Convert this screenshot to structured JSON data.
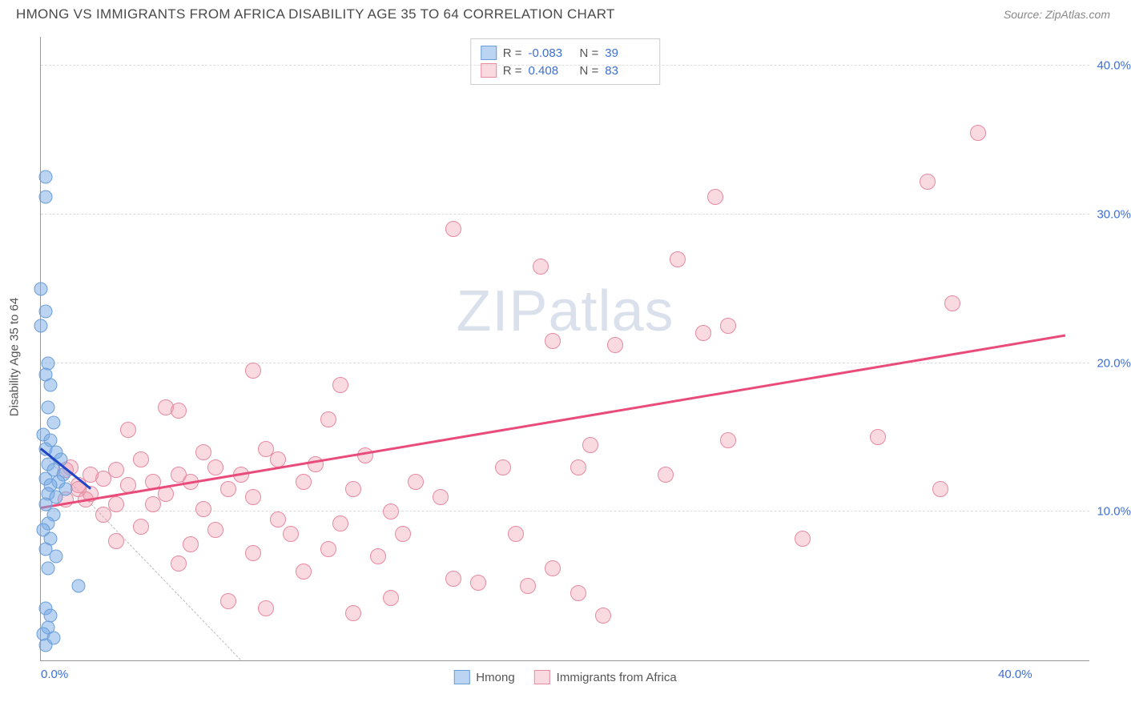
{
  "title": "HMONG VS IMMIGRANTS FROM AFRICA DISABILITY AGE 35 TO 64 CORRELATION CHART",
  "source": "Source: ZipAtlas.com",
  "ylabel": "Disability Age 35 to 64",
  "watermark_zip": "ZIP",
  "watermark_atlas": "atlas",
  "chart": {
    "type": "scatter",
    "xlim": [
      0,
      42
    ],
    "ylim": [
      0,
      42
    ],
    "yticks": [
      10,
      20,
      30,
      40
    ],
    "ytick_labels": [
      "10.0%",
      "20.0%",
      "30.0%",
      "40.0%"
    ],
    "xticks": [
      0,
      40
    ],
    "xtick_labels": [
      "0.0%",
      "40.0%"
    ],
    "grid_color": "#dddddd",
    "background_color": "#ffffff",
    "series": {
      "hmong": {
        "label": "Hmong",
        "color_fill": "rgba(120,170,230,0.5)",
        "color_stroke": "#6a9ed8",
        "marker_size": 17,
        "R": "-0.083",
        "N": "39",
        "trend": {
          "x1": 0.0,
          "y1": 14.2,
          "x2": 2.0,
          "y2": 11.5,
          "color": "#2145c7",
          "width": 2.5
        },
        "points": [
          [
            0.2,
            32.5
          ],
          [
            0.2,
            31.2
          ],
          [
            0.0,
            25.0
          ],
          [
            0.2,
            23.5
          ],
          [
            0.0,
            22.5
          ],
          [
            0.3,
            20.0
          ],
          [
            0.2,
            19.2
          ],
          [
            0.4,
            18.5
          ],
          [
            0.3,
            17.0
          ],
          [
            0.5,
            16.0
          ],
          [
            0.1,
            15.2
          ],
          [
            0.4,
            14.8
          ],
          [
            0.2,
            14.2
          ],
          [
            0.6,
            14.0
          ],
          [
            0.8,
            13.5
          ],
          [
            0.3,
            13.2
          ],
          [
            0.5,
            12.8
          ],
          [
            0.9,
            12.5
          ],
          [
            0.2,
            12.2
          ],
          [
            0.7,
            12.0
          ],
          [
            0.4,
            11.8
          ],
          [
            1.0,
            11.5
          ],
          [
            0.3,
            11.2
          ],
          [
            0.6,
            11.0
          ],
          [
            0.2,
            10.5
          ],
          [
            0.5,
            9.8
          ],
          [
            0.3,
            9.2
          ],
          [
            0.1,
            8.8
          ],
          [
            0.4,
            8.2
          ],
          [
            0.2,
            7.5
          ],
          [
            0.6,
            7.0
          ],
          [
            0.3,
            6.2
          ],
          [
            1.5,
            5.0
          ],
          [
            0.2,
            3.5
          ],
          [
            0.4,
            3.0
          ],
          [
            0.3,
            2.2
          ],
          [
            0.1,
            1.8
          ],
          [
            0.5,
            1.5
          ],
          [
            0.2,
            1.0
          ]
        ]
      },
      "africa": {
        "label": "Immigrants from Africa",
        "color_fill": "rgba(240,150,170,0.35)",
        "color_stroke": "#e68aa0",
        "marker_size": 20,
        "R": "0.408",
        "N": "83",
        "trend": {
          "x1": 0.0,
          "y1": 10.2,
          "x2": 41.0,
          "y2": 21.8,
          "color": "#e94b7a",
          "width": 2.5
        },
        "points": [
          [
            37.5,
            35.5
          ],
          [
            35.5,
            32.2
          ],
          [
            27.0,
            31.2
          ],
          [
            16.5,
            29.0
          ],
          [
            25.5,
            27.0
          ],
          [
            20.0,
            26.5
          ],
          [
            36.5,
            24.0
          ],
          [
            27.5,
            22.5
          ],
          [
            26.5,
            22.0
          ],
          [
            20.5,
            21.5
          ],
          [
            23.0,
            21.2
          ],
          [
            8.5,
            19.5
          ],
          [
            12.0,
            18.5
          ],
          [
            5.0,
            17.0
          ],
          [
            5.5,
            16.8
          ],
          [
            11.5,
            16.2
          ],
          [
            3.5,
            15.5
          ],
          [
            33.5,
            15.0
          ],
          [
            27.5,
            14.8
          ],
          [
            22.0,
            14.5
          ],
          [
            9.0,
            14.2
          ],
          [
            6.5,
            14.0
          ],
          [
            13.0,
            13.8
          ],
          [
            9.5,
            13.5
          ],
          [
            4.0,
            13.5
          ],
          [
            11.0,
            13.2
          ],
          [
            7.0,
            13.0
          ],
          [
            18.5,
            13.0
          ],
          [
            21.5,
            13.0
          ],
          [
            3.0,
            12.8
          ],
          [
            5.5,
            12.5
          ],
          [
            8.0,
            12.5
          ],
          [
            25.0,
            12.5
          ],
          [
            2.5,
            12.2
          ],
          [
            4.5,
            12.0
          ],
          [
            6.0,
            12.0
          ],
          [
            10.5,
            12.0
          ],
          [
            15.0,
            12.0
          ],
          [
            1.5,
            11.8
          ],
          [
            3.5,
            11.8
          ],
          [
            7.5,
            11.5
          ],
          [
            12.5,
            11.5
          ],
          [
            36.0,
            11.5
          ],
          [
            2.0,
            11.2
          ],
          [
            5.0,
            11.2
          ],
          [
            8.5,
            11.0
          ],
          [
            16.0,
            11.0
          ],
          [
            1.0,
            10.8
          ],
          [
            3.0,
            10.5
          ],
          [
            4.5,
            10.5
          ],
          [
            6.5,
            10.2
          ],
          [
            14.0,
            10.0
          ],
          [
            2.5,
            9.8
          ],
          [
            9.5,
            9.5
          ],
          [
            12.0,
            9.2
          ],
          [
            4.0,
            9.0
          ],
          [
            7.0,
            8.8
          ],
          [
            10.0,
            8.5
          ],
          [
            14.5,
            8.5
          ],
          [
            19.0,
            8.5
          ],
          [
            30.5,
            8.2
          ],
          [
            3.0,
            8.0
          ],
          [
            6.0,
            7.8
          ],
          [
            11.5,
            7.5
          ],
          [
            8.5,
            7.2
          ],
          [
            13.5,
            7.0
          ],
          [
            5.5,
            6.5
          ],
          [
            20.5,
            6.2
          ],
          [
            10.5,
            6.0
          ],
          [
            16.5,
            5.5
          ],
          [
            17.5,
            5.2
          ],
          [
            19.5,
            5.0
          ],
          [
            21.5,
            4.5
          ],
          [
            14.0,
            4.2
          ],
          [
            7.5,
            4.0
          ],
          [
            9.0,
            3.5
          ],
          [
            12.5,
            3.2
          ],
          [
            22.5,
            3.0
          ],
          [
            1.5,
            11.5
          ],
          [
            2.0,
            12.5
          ],
          [
            1.2,
            13.0
          ],
          [
            1.8,
            10.8
          ],
          [
            1.0,
            12.8
          ]
        ]
      }
    },
    "ref_line": {
      "x1": 0.0,
      "y1": 14.0,
      "x2": 8.0,
      "y2": 0.0
    }
  },
  "legend_top": {
    "R_label": "R =",
    "N_label": "N ="
  }
}
